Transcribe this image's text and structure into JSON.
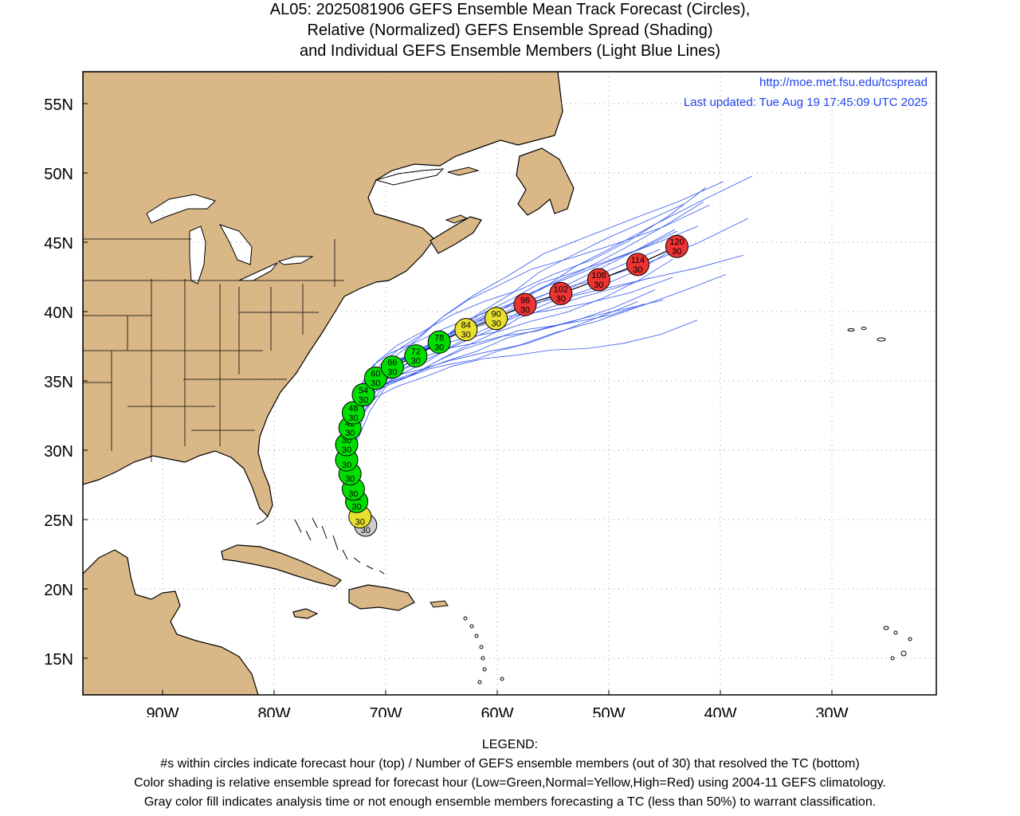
{
  "title": {
    "line1": "AL05: 2025081906 GEFS Ensemble Mean Track Forecast (Circles),",
    "line2": "Relative (Normalized) GEFS Ensemble Spread (Shading)",
    "line3": "and Individual GEFS Ensemble Members (Light Blue Lines)"
  },
  "header": {
    "url": "http://moe.met.fsu.edu/tcspread",
    "updated": "Last updated: Tue Aug 19 17:45:09 UTC 2025"
  },
  "axes": {
    "lat_ticks": [
      "55N",
      "50N",
      "45N",
      "40N",
      "35N",
      "30N",
      "25N",
      "20N",
      "15N"
    ],
    "lon_ticks": [
      "90W",
      "80W",
      "70W",
      "60W",
      "50W",
      "40W",
      "30W"
    ]
  },
  "legend": {
    "heading": "LEGEND:",
    "line1": "#s within circles indicate forecast hour (top) / Number of GEFS ensemble members (out of 30) that resolved the TC (bottom)",
    "line2": "Color shading is relative ensemble spread for forecast hour (Low=Green,Normal=Yellow,High=Red) using 2004-11 GEFS climatology.",
    "line3": "Gray color fill indicates analysis time or not enough ensemble members forecasting a TC (less than 50%) to warrant classification."
  },
  "colors": {
    "land": "#dab787",
    "low": "#00dd00",
    "normal": "#e8e030",
    "high": "#ee3333",
    "analysis": "#cccccc",
    "members": "#3355ee",
    "header_text": "#2244ee"
  },
  "track": [
    {
      "lon": -71.8,
      "lat": 24.6,
      "hour": "",
      "members": "30",
      "spread": "analysis"
    },
    {
      "lon": -72.3,
      "lat": 25.2,
      "hour": "",
      "members": "30",
      "spread": "normal"
    },
    {
      "lon": -72.6,
      "lat": 26.3,
      "hour": "12",
      "members": "30",
      "spread": "low"
    },
    {
      "lon": -72.9,
      "lat": 27.2,
      "hour": "",
      "members": "30",
      "spread": "low"
    },
    {
      "lon": -73.2,
      "lat": 28.3,
      "hour": "",
      "members": "30",
      "spread": "low"
    },
    {
      "lon": -73.5,
      "lat": 29.3,
      "hour": "",
      "members": "30",
      "spread": "low"
    },
    {
      "lon": -73.5,
      "lat": 30.4,
      "hour": "30",
      "members": "30",
      "spread": "low"
    },
    {
      "lon": -73.2,
      "lat": 31.6,
      "hour": "42",
      "members": "30",
      "spread": "low"
    },
    {
      "lon": -72.9,
      "lat": 32.7,
      "hour": "48",
      "members": "30",
      "spread": "low"
    },
    {
      "lon": -72.0,
      "lat": 34.0,
      "hour": "54",
      "members": "30",
      "spread": "low"
    },
    {
      "lon": -70.9,
      "lat": 35.2,
      "hour": "60",
      "members": "30",
      "spread": "low"
    },
    {
      "lon": -69.4,
      "lat": 36.0,
      "hour": "66",
      "members": "30",
      "spread": "low"
    },
    {
      "lon": -67.3,
      "lat": 36.8,
      "hour": "72",
      "members": "30",
      "spread": "low"
    },
    {
      "lon": -65.2,
      "lat": 37.8,
      "hour": "78",
      "members": "30",
      "spread": "low"
    },
    {
      "lon": -62.8,
      "lat": 38.7,
      "hour": "84",
      "members": "30",
      "spread": "normal"
    },
    {
      "lon": -60.1,
      "lat": 39.5,
      "hour": "90",
      "members": "30",
      "spread": "normal"
    },
    {
      "lon": -57.5,
      "lat": 40.5,
      "hour": "96",
      "members": "30",
      "spread": "high"
    },
    {
      "lon": -54.3,
      "lat": 41.3,
      "hour": "102",
      "members": "30",
      "spread": "high"
    },
    {
      "lon": -50.9,
      "lat": 42.3,
      "hour": "108",
      "members": "30",
      "spread": "high"
    },
    {
      "lon": -47.4,
      "lat": 43.4,
      "hour": "114",
      "members": "30",
      "spread": "high"
    },
    {
      "lon": -43.9,
      "lat": 44.7,
      "hour": "120",
      "members": "30",
      "spread": "high"
    }
  ]
}
